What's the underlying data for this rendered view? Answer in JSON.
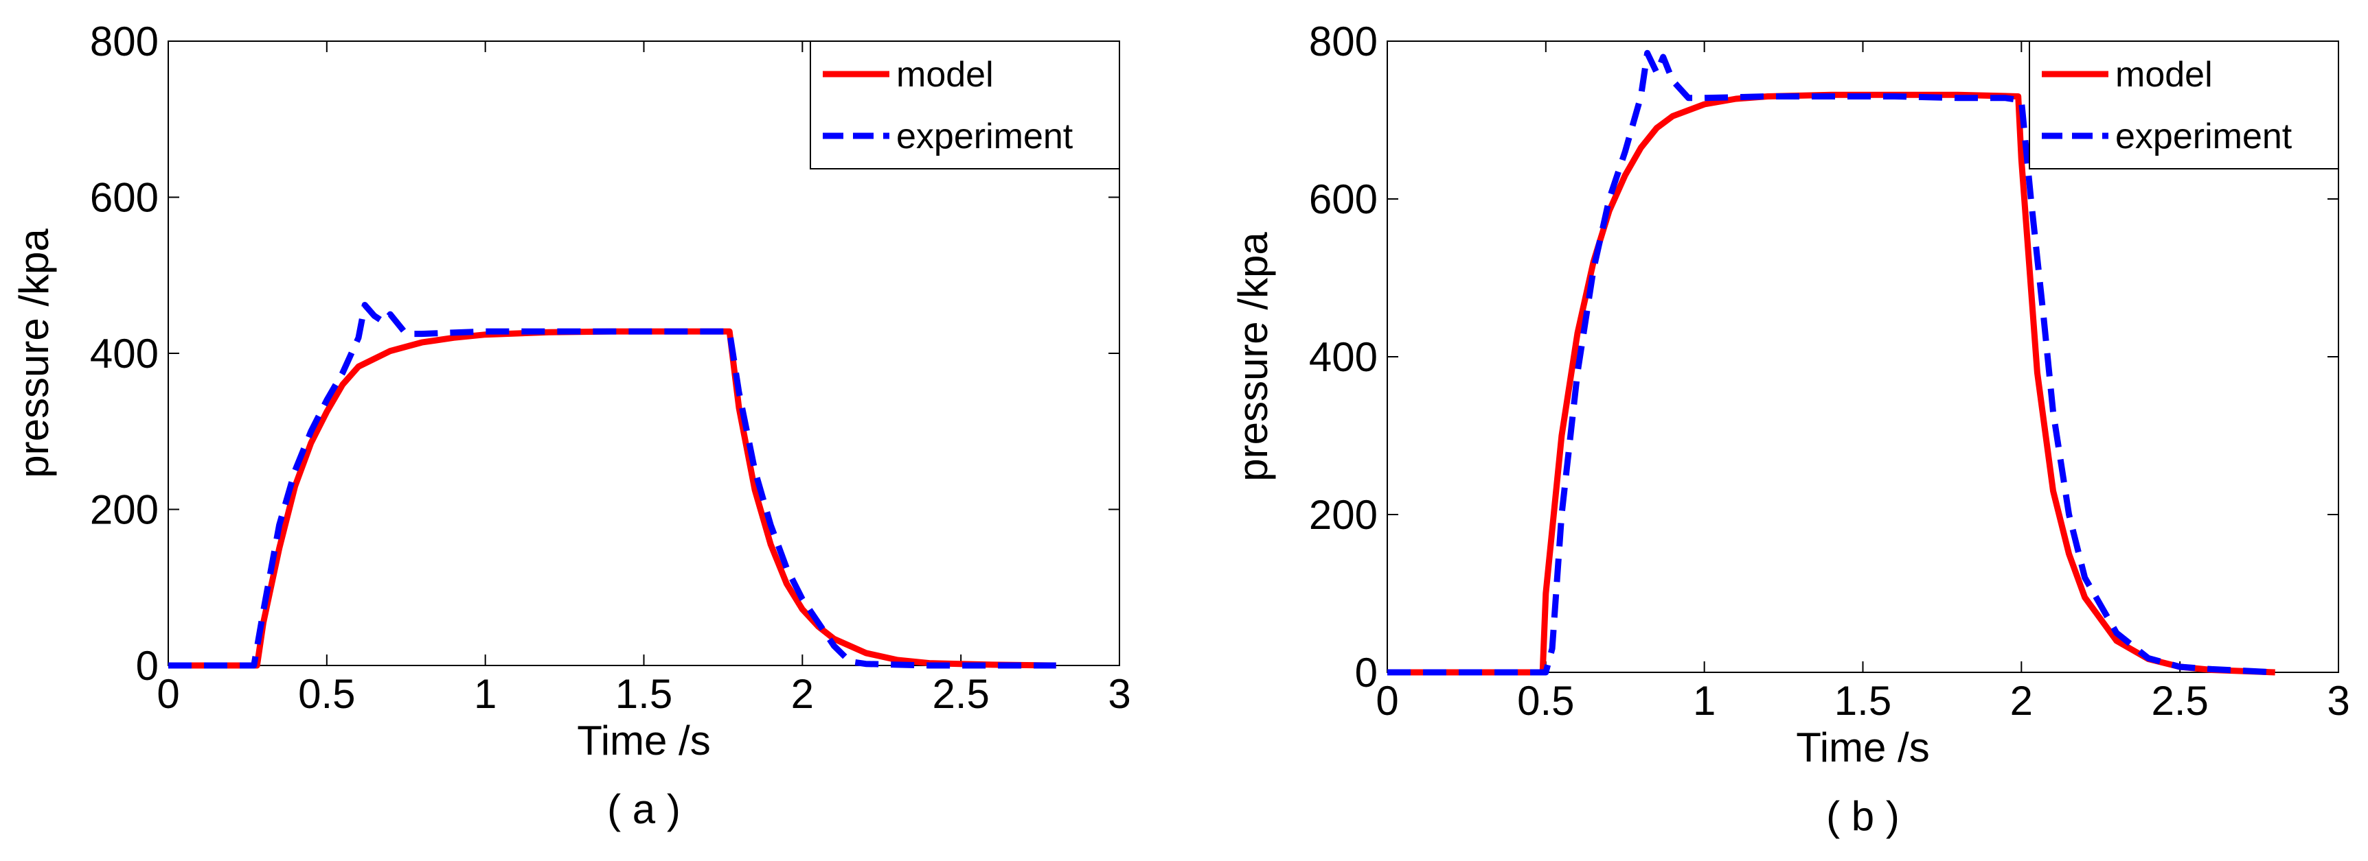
{
  "chart_data": [
    {
      "type": "line",
      "caption": "( a )",
      "xlabel": "Time /s",
      "ylabel": "pressure /kpa",
      "xlim": [
        0,
        3
      ],
      "ylim": [
        0,
        800
      ],
      "xticks": [
        "0",
        "0.5",
        "1",
        "1.5",
        "2",
        "2.5",
        "3"
      ],
      "yticks": [
        "0",
        "200",
        "400",
        "600",
        "800"
      ],
      "legend_position": "top-right",
      "series": [
        {
          "name": "model",
          "color": "#ff0000",
          "style": "solid",
          "x": [
            0,
            0.28,
            0.3,
            0.35,
            0.4,
            0.45,
            0.5,
            0.55,
            0.6,
            0.7,
            0.8,
            0.9,
            1.0,
            1.2,
            1.4,
            1.6,
            1.77,
            1.8,
            1.85,
            1.9,
            1.95,
            2.0,
            2.05,
            2.1,
            2.2,
            2.3,
            2.4,
            2.6,
            2.8
          ],
          "y": [
            0,
            0,
            55,
            150,
            230,
            285,
            325,
            360,
            383,
            403,
            414,
            420,
            424,
            427,
            428,
            428,
            428,
            330,
            225,
            155,
            105,
            72,
            50,
            34,
            16,
            7,
            3,
            1,
            0
          ]
        },
        {
          "name": "experiment",
          "color": "#0000ff",
          "style": "dashed",
          "x": [
            0,
            0.27,
            0.3,
            0.35,
            0.4,
            0.45,
            0.5,
            0.55,
            0.6,
            0.62,
            0.65,
            0.68,
            0.7,
            0.75,
            0.8,
            1.0,
            1.2,
            1.4,
            1.6,
            1.77,
            1.8,
            1.85,
            1.9,
            1.95,
            2.0,
            2.05,
            2.1,
            2.15,
            2.2,
            2.4,
            2.6,
            2.8
          ],
          "y": [
            0,
            0,
            70,
            180,
            250,
            300,
            340,
            375,
            420,
            462,
            448,
            440,
            450,
            425,
            425,
            428,
            428,
            428,
            428,
            428,
            350,
            250,
            180,
            125,
            85,
            55,
            25,
            5,
            2,
            0,
            0,
            0
          ]
        }
      ]
    },
    {
      "type": "line",
      "caption": "( b )",
      "xlabel": "Time /s",
      "ylabel": "pressure /kpa",
      "xlim": [
        0,
        3
      ],
      "ylim": [
        0,
        800
      ],
      "xticks": [
        "0",
        "0.5",
        "1",
        "1.5",
        "2",
        "2.5",
        "3"
      ],
      "yticks": [
        "0",
        "200",
        "400",
        "600",
        "800"
      ],
      "legend_position": "top-right",
      "series": [
        {
          "name": "model",
          "color": "#ff0000",
          "style": "solid",
          "x": [
            0,
            0.49,
            0.5,
            0.55,
            0.6,
            0.65,
            0.7,
            0.75,
            0.8,
            0.85,
            0.9,
            1.0,
            1.1,
            1.2,
            1.4,
            1.6,
            1.8,
            1.99,
            2.0,
            2.05,
            2.1,
            2.15,
            2.2,
            2.3,
            2.4,
            2.5,
            2.6,
            2.8
          ],
          "y": [
            0,
            0,
            100,
            300,
            430,
            520,
            585,
            630,
            665,
            690,
            705,
            720,
            727,
            730,
            732,
            732,
            732,
            730,
            650,
            380,
            230,
            150,
            95,
            40,
            17,
            7,
            3,
            0
          ]
        },
        {
          "name": "experiment",
          "color": "#0000ff",
          "style": "dashed",
          "x": [
            0,
            0.5,
            0.52,
            0.55,
            0.6,
            0.65,
            0.7,
            0.75,
            0.8,
            0.82,
            0.85,
            0.87,
            0.9,
            0.95,
            1.0,
            1.2,
            1.4,
            1.6,
            1.8,
            1.95,
            2.0,
            2.03,
            2.07,
            2.1,
            2.15,
            2.2,
            2.3,
            2.4,
            2.5,
            2.6,
            2.8
          ],
          "y": [
            0,
            0,
            30,
            200,
            380,
            510,
            600,
            660,
            730,
            785,
            760,
            780,
            750,
            728,
            728,
            730,
            730,
            730,
            728,
            728,
            725,
            600,
            450,
            330,
            200,
            120,
            50,
            18,
            7,
            4,
            0
          ]
        }
      ]
    }
  ]
}
